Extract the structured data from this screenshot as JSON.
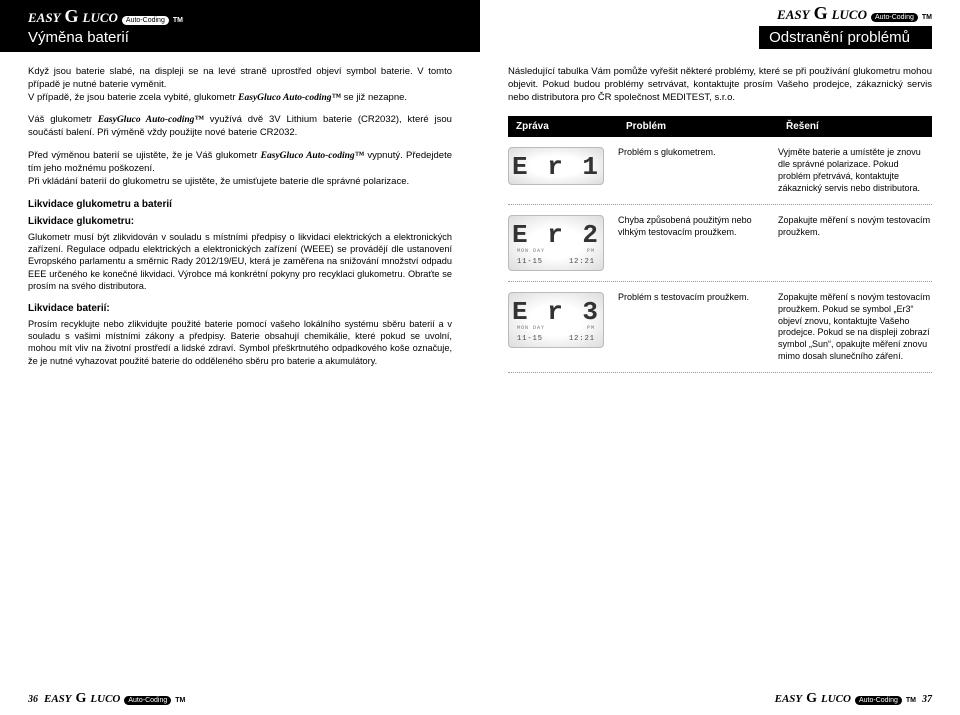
{
  "brand": {
    "easy": "EASY",
    "g": "G",
    "luco": "LUCO",
    "badge": "Auto-Coding",
    "tm": "TM"
  },
  "left": {
    "title": "Výměna baterií",
    "p1a": "Když jsou baterie slabé, na displeji se na levé straně uprostřed objeví symbol baterie. V tomto případě je nutné baterie vyměnit.",
    "p1b": "V případě, že jsou baterie zcela vybité, glukometr ",
    "p1c": "EasyGluco Auto-coding™",
    "p1d": " se již nezapne.",
    "p2a": "Váš glukometr ",
    "p2b": "EasyGluco Auto-coding™",
    "p2c": " využívá dvě 3V Lithium baterie (CR2032), které jsou součástí balení. Při výměně vždy použijte nové baterie CR2032.",
    "p3a": "Před výměnou baterií se ujistěte, že je Váš glukometr ",
    "p3b": "EasyGluco Auto-coding™",
    "p3c": " vypnutý. Předejdete tím jeho možnému poškození.",
    "p3d": "Při vkládání baterií do glukometru se ujistěte, že umisťujete baterie dle správné polarizace.",
    "disposal_head": "Likvidace glukometru a baterií",
    "disposal_g_head": "Likvidace glukometru:",
    "disposal_g": "Glukometr musí být zlikvidován v souladu s místními předpisy o likvidaci elektrických a elektronických zařízení. Regulace odpadu elektrických a elektronických zařízení (WEEE) se provádějí dle ustanovení Evropského parlamentu a směrnic Rady 2012/19/EU, která je zaměřena na snižování množství odpadu EEE určeného ke konečné likvidaci. Výrobce má konkrétní pokyny pro recyklaci glukometru. Obraťte se prosím na svého distributora.",
    "disposal_b_head": "Likvidace baterií:",
    "disposal_b": "Prosím recyklujte nebo zlikvidujte použité baterie pomocí vašeho lokálního systému sběru baterií a v souladu s vašimi místními zákony a předpisy. Baterie obsahují chemikálie, které pokud se uvolní, mohou mít vliv na životní prostředí a lidské zdraví. Symbol přeškrtnutého odpadkového koše označuje, že je nutné vyhazovat použité baterie do odděleného sběru pro baterie a akumulátory.",
    "pagenum": "36"
  },
  "right": {
    "title": "Odstranění problémů",
    "intro": "Následující tabulka Vám pomůže vyřešit některé problémy, které se při používání glukometru mohou objevit. Pokud budou problémy setrvávat, kontaktujte prosím Vašeho prodejce, zákaznický servis nebo distributora pro ČR společnost MEDITEST, s.r.o.",
    "th": {
      "c1": "Zpráva",
      "c2": "Problém",
      "c3": "Řešení"
    },
    "rows": [
      {
        "lcd_big": "E r 1",
        "lcd_date": "",
        "lcd_time": "",
        "problem": "Problém s glukometrem.",
        "solution": "Vyjměte baterie a umístěte je znovu dle správné polarizace. Pokud problém přetrvává, kontaktujte zákaznický servis nebo distributora."
      },
      {
        "lcd_big": "E r 2",
        "lcd_date": "11-15",
        "lcd_time": "12:21",
        "lcd_l1": "MON  DAY",
        "lcd_l2": "PM",
        "problem": "Chyba způsobená použitým nebo vlhkým testovacím proužkem.",
        "solution": "Zopakujte měření s novým testovacím proužkem."
      },
      {
        "lcd_big": "E r 3",
        "lcd_date": "11-15",
        "lcd_time": "12:21",
        "lcd_l1": "MON  DAY",
        "lcd_l2": "PM",
        "problem": "Problém s testovacím proužkem.",
        "solution": "Zopakujte měření s novým testovacím proužkem. Pokud se symbol „Er3“ objeví znovu, kontaktujte Vašeho prodejce. Pokud se na displeji zobrazí symbol „Sun“, opakujte měření znovu mimo dosah slunečního záření."
      }
    ],
    "pagenum": "37"
  },
  "colors": {
    "bg": "#ffffff",
    "ink": "#000000",
    "lcd_grad": "#dcdcdc",
    "dot": "#999999"
  }
}
